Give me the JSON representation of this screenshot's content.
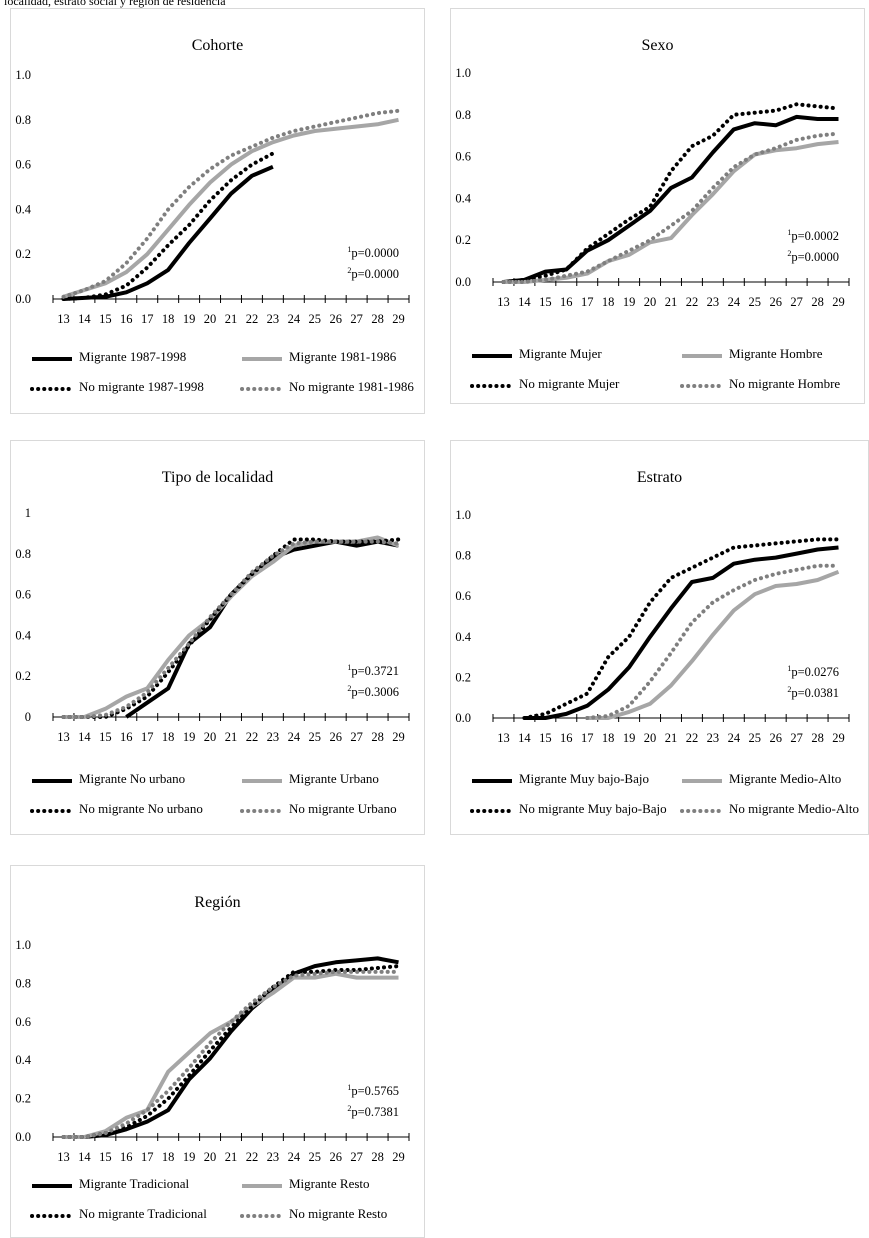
{
  "header": "localidad, estrato social y región de residencia",
  "colors": {
    "migrante_a": "#000000",
    "migrante_b": "#a6a6a6",
    "no_migrante_a": "#000000",
    "no_migrante_b": "#7f7f7f",
    "axis": "#000000",
    "panel_border": "#d9d9d9"
  },
  "chart_data": [
    {
      "id": "cohorte",
      "type": "line",
      "title": "Cohorte",
      "x": [
        13,
        14,
        15,
        16,
        17,
        18,
        19,
        20,
        21,
        22,
        23,
        24,
        25,
        26,
        27,
        28,
        29
      ],
      "ylim": [
        0,
        1.0
      ],
      "yticks": [
        "0.0",
        "0.2",
        "0.4",
        "0.6",
        "0.8",
        "1.0"
      ],
      "pvalues": [
        "p=0.0000",
        "p=0.0000"
      ],
      "series": [
        {
          "name": "Migrante 1987-1998",
          "style": "solid",
          "color": "#000000",
          "values": [
            0.0,
            0.005,
            0.01,
            0.03,
            0.07,
            0.13,
            0.25,
            0.36,
            0.47,
            0.55,
            0.59,
            null,
            null,
            null,
            null,
            null,
            null
          ]
        },
        {
          "name": "Migrante 1981-1986",
          "style": "solid",
          "color": "#a6a6a6",
          "values": [
            0.01,
            0.04,
            0.07,
            0.12,
            0.2,
            0.31,
            0.42,
            0.52,
            0.6,
            0.66,
            0.7,
            0.73,
            0.75,
            0.76,
            0.77,
            0.78,
            0.8
          ]
        },
        {
          "name": "No migrante 1987-1998",
          "style": "dotted",
          "color": "#000000",
          "values": [
            0.0,
            0.005,
            0.02,
            0.06,
            0.14,
            0.24,
            0.33,
            0.44,
            0.53,
            0.6,
            0.65,
            null,
            null,
            null,
            null,
            null,
            null
          ]
        },
        {
          "name": "No migrante 1981-1986",
          "style": "dotted",
          "color": "#7f7f7f",
          "values": [
            0.01,
            0.04,
            0.08,
            0.16,
            0.27,
            0.4,
            0.5,
            0.58,
            0.64,
            0.68,
            0.72,
            0.75,
            0.77,
            0.79,
            0.81,
            0.83,
            0.84
          ]
        }
      ]
    },
    {
      "id": "sexo",
      "type": "line",
      "title": "Sexo",
      "x": [
        13,
        14,
        15,
        16,
        17,
        18,
        19,
        20,
        21,
        22,
        23,
        24,
        25,
        26,
        27,
        28,
        29
      ],
      "ylim": [
        0,
        1.0
      ],
      "yticks": [
        "0.0",
        "0.2",
        "0.4",
        "0.6",
        "0.8",
        "1.0"
      ],
      "pvalues": [
        "p=0.0002",
        "p=0.0000"
      ],
      "series": [
        {
          "name": "Migrante Mujer",
          "style": "solid",
          "color": "#000000",
          "values": [
            0.0,
            0.01,
            0.05,
            0.06,
            0.15,
            0.2,
            0.27,
            0.34,
            0.45,
            0.5,
            0.62,
            0.73,
            0.76,
            0.75,
            0.79,
            0.78,
            0.78
          ]
        },
        {
          "name": "Migrante Hombre",
          "style": "solid",
          "color": "#a6a6a6",
          "values": [
            0.0,
            0.0,
            0.01,
            0.02,
            0.04,
            0.1,
            0.13,
            0.19,
            0.21,
            0.32,
            0.42,
            0.53,
            0.61,
            0.63,
            0.64,
            0.66,
            0.67
          ]
        },
        {
          "name": "No migrante Mujer",
          "style": "dotted",
          "color": "#000000",
          "values": [
            0.0,
            0.01,
            0.03,
            0.06,
            0.16,
            0.23,
            0.3,
            0.36,
            0.53,
            0.65,
            0.7,
            0.8,
            0.81,
            0.82,
            0.85,
            0.84,
            0.83
          ]
        },
        {
          "name": "No migrante Hombre",
          "style": "dotted",
          "color": "#7f7f7f",
          "values": [
            0.0,
            0.0,
            0.01,
            0.03,
            0.05,
            0.1,
            0.15,
            0.2,
            0.27,
            0.34,
            0.45,
            0.55,
            0.61,
            0.64,
            0.68,
            0.7,
            0.71
          ]
        }
      ]
    },
    {
      "id": "tipo_localidad",
      "type": "line",
      "title": "Tipo de localidad",
      "x": [
        13,
        14,
        15,
        16,
        17,
        18,
        19,
        20,
        21,
        22,
        23,
        24,
        25,
        26,
        27,
        28,
        29
      ],
      "ylim": [
        0,
        1
      ],
      "yticks": [
        "0",
        "0.2",
        "0.4",
        "0.6",
        "0.8",
        "1"
      ],
      "pvalues": [
        "p=0.3721",
        "p=0.3006"
      ],
      "series": [
        {
          "name": "Migrante No urbano",
          "style": "solid",
          "color": "#000000",
          "values": [
            null,
            null,
            null,
            0.0,
            0.07,
            0.14,
            0.36,
            0.44,
            0.6,
            0.7,
            0.78,
            0.82,
            0.84,
            0.86,
            0.84,
            0.86,
            0.84
          ]
        },
        {
          "name": "Migrante Urbano",
          "style": "solid",
          "color": "#a6a6a6",
          "values": [
            0.0,
            0.0,
            0.04,
            0.1,
            0.14,
            0.28,
            0.4,
            0.48,
            0.59,
            0.69,
            0.76,
            0.84,
            0.86,
            0.86,
            0.86,
            0.88,
            0.84
          ]
        },
        {
          "name": "No migrante No urbano",
          "style": "dotted",
          "color": "#000000",
          "values": [
            0.0,
            0.0,
            0.0,
            0.04,
            0.1,
            0.22,
            0.35,
            0.48,
            0.6,
            0.7,
            0.79,
            0.87,
            0.87,
            0.86,
            0.86,
            0.86,
            0.87
          ]
        },
        {
          "name": "No migrante Urbano",
          "style": "dotted",
          "color": "#7f7f7f",
          "values": [
            0.0,
            0.0,
            0.01,
            0.05,
            0.12,
            0.24,
            0.36,
            0.49,
            0.6,
            0.71,
            0.79,
            0.85,
            0.86,
            0.86,
            0.86,
            0.86,
            0.85
          ]
        }
      ]
    },
    {
      "id": "estrato",
      "type": "line",
      "title": "Estrato",
      "x": [
        13,
        14,
        15,
        16,
        17,
        18,
        19,
        20,
        21,
        22,
        23,
        24,
        25,
        26,
        27,
        28,
        29
      ],
      "ylim": [
        0,
        1.0
      ],
      "yticks": [
        "0.0",
        "0.2",
        "0.4",
        "0.6",
        "0.8",
        "1.0"
      ],
      "pvalues": [
        "p=0.0276",
        "p=0.0381"
      ],
      "series": [
        {
          "name": "Migrante Muy bajo-Bajo",
          "style": "solid",
          "color": "#000000",
          "values": [
            null,
            0.0,
            0.0,
            0.02,
            0.06,
            0.14,
            0.25,
            0.4,
            0.54,
            0.67,
            0.69,
            0.76,
            0.78,
            0.79,
            0.81,
            0.83,
            0.84
          ]
        },
        {
          "name": "Migrante Medio-Alto",
          "style": "solid",
          "color": "#a6a6a6",
          "values": [
            null,
            null,
            null,
            null,
            0.0,
            0.0,
            0.03,
            0.07,
            0.16,
            0.28,
            0.41,
            0.53,
            0.61,
            0.65,
            0.66,
            0.68,
            0.72
          ]
        },
        {
          "name": "No migrante Muy bajo-Bajo",
          "style": "dotted",
          "color": "#000000",
          "values": [
            null,
            0.0,
            0.02,
            0.07,
            0.12,
            0.3,
            0.4,
            0.57,
            0.69,
            0.74,
            0.79,
            0.84,
            0.85,
            0.86,
            0.87,
            0.88,
            0.88
          ]
        },
        {
          "name": "No migrante Medio-Alto",
          "style": "dotted",
          "color": "#7f7f7f",
          "values": [
            null,
            null,
            null,
            null,
            0.0,
            0.01,
            0.06,
            0.18,
            0.32,
            0.47,
            0.57,
            0.63,
            0.68,
            0.71,
            0.73,
            0.75,
            0.75
          ]
        }
      ]
    },
    {
      "id": "region",
      "type": "line",
      "title": "Región",
      "x": [
        13,
        14,
        15,
        16,
        17,
        18,
        19,
        20,
        21,
        22,
        23,
        24,
        25,
        26,
        27,
        28,
        29
      ],
      "ylim": [
        0,
        1.0
      ],
      "yticks": [
        "0.0",
        "0.2",
        "0.4",
        "0.6",
        "0.8",
        "1.0"
      ],
      "pvalues": [
        "p=0.5765",
        "p=0.7381"
      ],
      "series": [
        {
          "name": "Migrante Tradicional",
          "style": "solid",
          "color": "#000000",
          "values": [
            0.0,
            0.0,
            0.01,
            0.04,
            0.08,
            0.14,
            0.3,
            0.41,
            0.55,
            0.67,
            0.76,
            0.85,
            0.89,
            0.91,
            0.92,
            0.93,
            0.91
          ]
        },
        {
          "name": "Migrante Resto",
          "style": "solid",
          "color": "#a6a6a6",
          "values": [
            0.0,
            0.0,
            0.03,
            0.1,
            0.14,
            0.34,
            0.44,
            0.54,
            0.6,
            0.68,
            0.75,
            0.83,
            0.83,
            0.85,
            0.83,
            0.83,
            0.83
          ]
        },
        {
          "name": "No migrante Tradicional",
          "style": "dotted",
          "color": "#000000",
          "values": [
            0.0,
            0.0,
            0.02,
            0.05,
            0.11,
            0.2,
            0.32,
            0.45,
            0.57,
            0.68,
            0.78,
            0.86,
            0.86,
            0.87,
            0.87,
            0.88,
            0.89
          ]
        },
        {
          "name": "No migrante Resto",
          "style": "dotted",
          "color": "#7f7f7f",
          "values": [
            0.0,
            0.0,
            0.02,
            0.07,
            0.14,
            0.24,
            0.36,
            0.49,
            0.6,
            0.7,
            0.78,
            0.84,
            0.85,
            0.86,
            0.86,
            0.86,
            0.86
          ]
        }
      ]
    }
  ]
}
